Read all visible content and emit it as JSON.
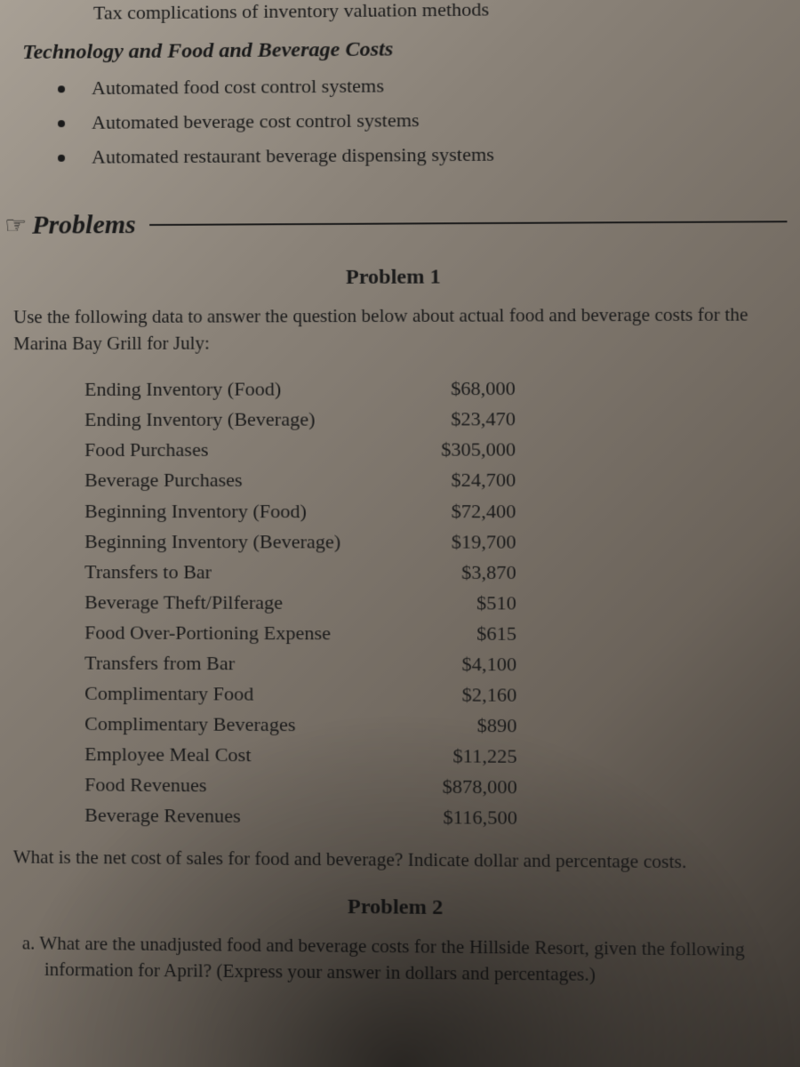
{
  "topPartial": "Tax complications of inventory valuation methods",
  "sectionHeading": "Technology and Food and Beverage Costs",
  "techBullets": [
    "Automated food cost control systems",
    "Automated beverage cost control systems",
    "Automated restaurant beverage dispensing systems"
  ],
  "problemsTitle": "Problems",
  "problem1": {
    "title": "Problem 1",
    "intro": "Use the following data to answer the question below about actual food and beverage costs for the Marina Bay Grill for July:",
    "data": [
      {
        "label": "Ending Inventory (Food)",
        "value": "$68,000"
      },
      {
        "label": "Ending Inventory (Beverage)",
        "value": "$23,470"
      },
      {
        "label": "Food Purchases",
        "value": "$305,000"
      },
      {
        "label": "Beverage Purchases",
        "value": "$24,700"
      },
      {
        "label": "Beginning Inventory (Food)",
        "value": "$72,400"
      },
      {
        "label": "Beginning Inventory (Beverage)",
        "value": "$19,700"
      },
      {
        "label": "Transfers to Bar",
        "value": "$3,870"
      },
      {
        "label": "Beverage Theft/Pilferage",
        "value": "$510"
      },
      {
        "label": "Food Over-Portioning Expense",
        "value": "$615"
      },
      {
        "label": "Transfers from Bar",
        "value": "$4,100"
      },
      {
        "label": "Complimentary Food",
        "value": "$2,160"
      },
      {
        "label": "Complimentary Beverages",
        "value": "$890"
      },
      {
        "label": "Employee Meal Cost",
        "value": "$11,225"
      },
      {
        "label": "Food Revenues",
        "value": "$878,000"
      },
      {
        "label": "Beverage Revenues",
        "value": "$116,500"
      }
    ],
    "question": "What is the net cost of sales for food and beverage? Indicate dollar and percentage costs."
  },
  "problem2": {
    "title": "Problem 2",
    "subA": "a. What are the unadjusted food and beverage costs for the Hillside Resort, given the following information for April? (Express your answer in dollars and percentages.)"
  }
}
